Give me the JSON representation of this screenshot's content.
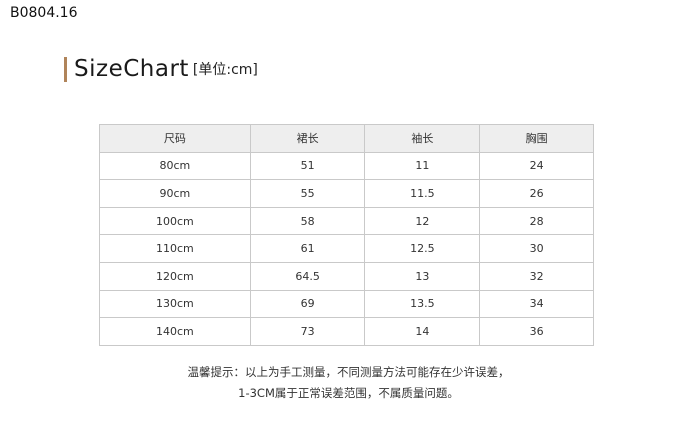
{
  "code": "B0804.16",
  "title": {
    "main": "SizeChart",
    "unit": "[单位:cm]",
    "accent": "#b0845a"
  },
  "table": {
    "headers": [
      "尺码",
      "裙长",
      "袖长",
      "胸围"
    ],
    "rows": [
      [
        "80cm",
        "51",
        "11",
        "24"
      ],
      [
        "90cm",
        "55",
        "11.5",
        "26"
      ],
      [
        "100cm",
        "58",
        "12",
        "28"
      ],
      [
        "110cm",
        "61",
        "12.5",
        "30"
      ],
      [
        "120cm",
        "64.5",
        "13",
        "32"
      ],
      [
        "130cm",
        "69",
        "13.5",
        "34"
      ],
      [
        "140cm",
        "73",
        "14",
        "36"
      ]
    ]
  },
  "note": {
    "line1": "温馨提示：以上为手工测量，不同测量方法可能存在少许误差，",
    "line2": "1-3CM属于正常误差范围，不属质量问题。"
  }
}
